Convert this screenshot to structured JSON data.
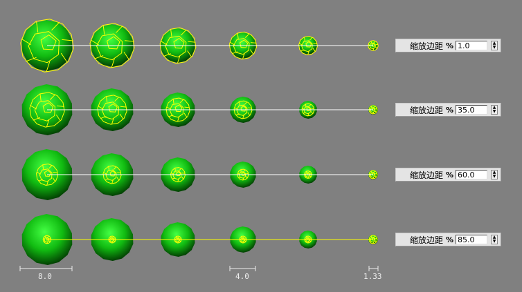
{
  "rows": [
    {
      "label": "缩放边距",
      "unit": "%",
      "value": "1.0",
      "margin": 1.0
    },
    {
      "label": "缩放边距",
      "unit": "%",
      "value": "35.0",
      "margin": 35.0
    },
    {
      "label": "缩放边距",
      "unit": "%",
      "value": "60.0",
      "margin": 60.0
    },
    {
      "label": "缩放边距",
      "unit": "%",
      "value": "85.0",
      "margin": 85.0
    }
  ],
  "scale_labels": [
    "8.0",
    "4.0",
    "1.33"
  ],
  "colors": {
    "background": "#808080",
    "sphere": "#22cc22",
    "wire": "#ffff00",
    "line_white": "#ffffff",
    "line_yellow": "#ffff00"
  }
}
